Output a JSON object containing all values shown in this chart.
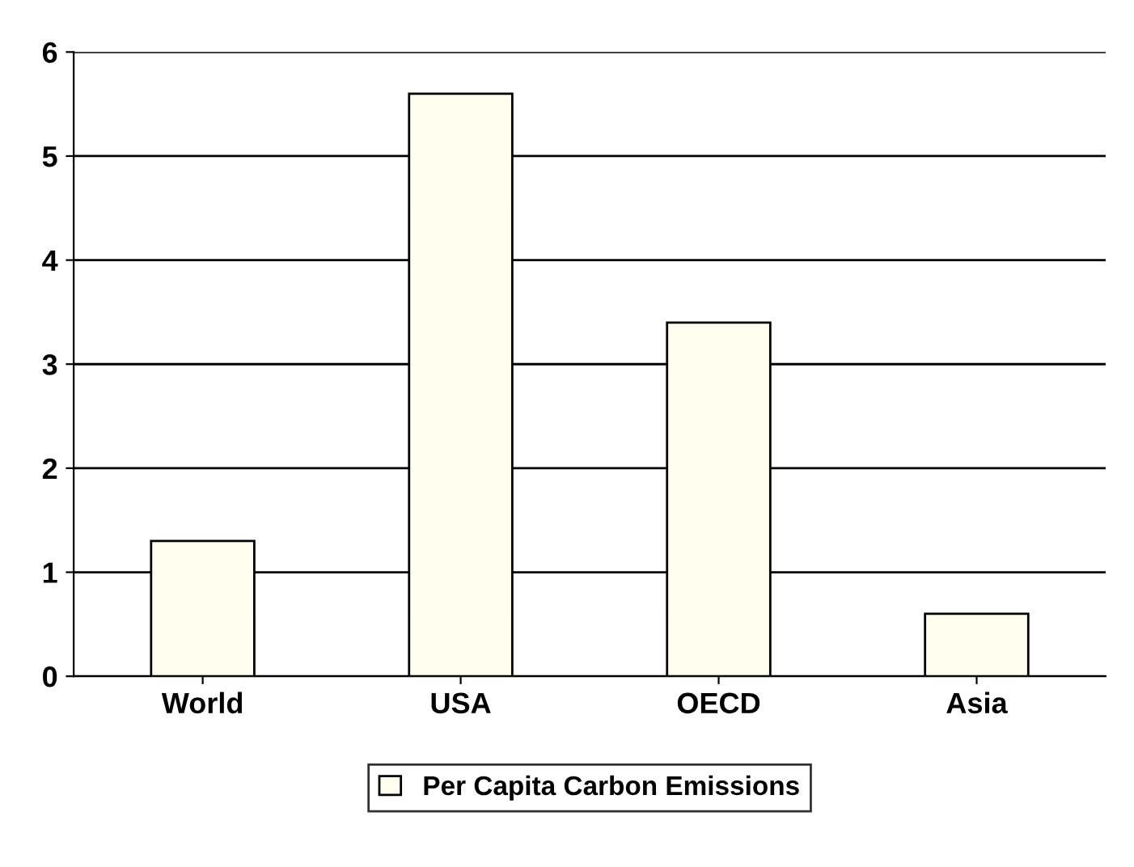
{
  "chart_data": {
    "type": "bar",
    "categories": [
      "World",
      "USA",
      "OECD",
      "Asia"
    ],
    "series": [
      {
        "name": "Per Capita Carbon Emissions",
        "color": "#fffff0",
        "values": [
          1.3,
          5.6,
          3.4,
          0.6
        ]
      }
    ],
    "ylim": [
      0,
      6
    ],
    "yticks": [
      0,
      1,
      2,
      3,
      4,
      5,
      6
    ],
    "grid": "y",
    "legend": "bottom"
  }
}
